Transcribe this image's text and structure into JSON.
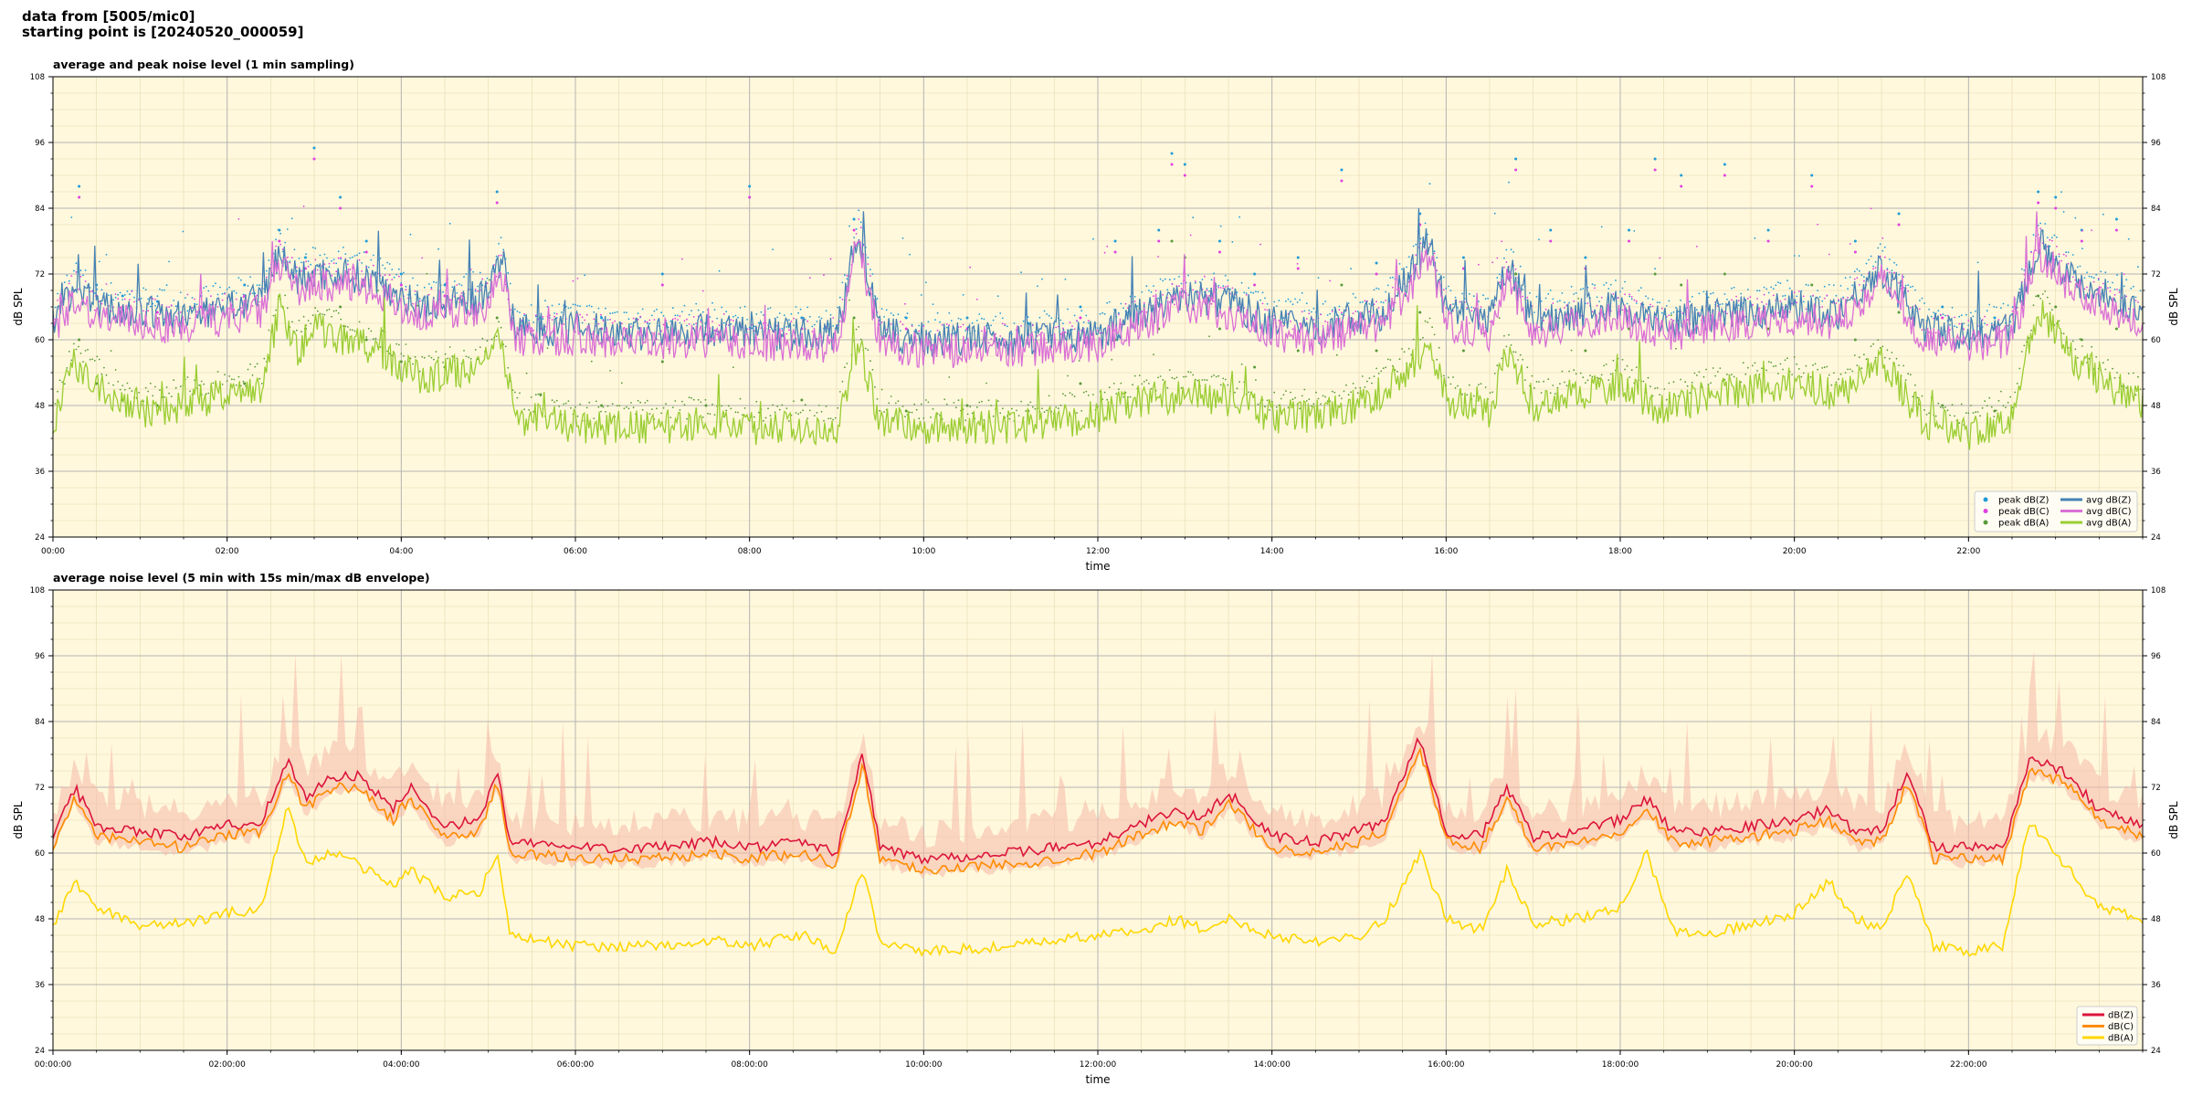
{
  "header": {
    "line1": "data from [5005/mic0]",
    "line2": "starting point is [20240520_000059]"
  },
  "colors": {
    "background": "#FFF8DC",
    "peak_z": "#1f9bd8",
    "peak_c": "#e040e0",
    "peak_a": "#5a9a3a",
    "avg_z": "#4682B4",
    "avg_c": "#DA70D6",
    "avg_a": "#9ACD32",
    "db_z": "#DC143C",
    "db_c": "#FF8C00",
    "db_a": "#FFD700",
    "envelope": "#f5b8a8"
  },
  "chart_data": [
    {
      "type": "line",
      "title": "average and peak noise level (1 min sampling)",
      "xlabel": "time",
      "ylabel": "dB SPL",
      "ylim": [
        24,
        108
      ],
      "yticks": [
        "24",
        "36",
        "48",
        "60",
        "72",
        "84",
        "96",
        "108"
      ],
      "xlim": [
        0,
        24
      ],
      "xtick_labels": [
        "00:00",
        "02:00",
        "04:00",
        "06:00",
        "08:00",
        "10:00",
        "12:00",
        "14:00",
        "16:00",
        "18:00",
        "20:00",
        "22:00"
      ],
      "grid": true,
      "legend_position": "bottom-right",
      "legend_columns": [
        [
          "peak dB(Z)",
          "peak dB(C)",
          "peak dB(A)"
        ],
        [
          "avg dB(Z)",
          "avg dB(C)",
          "avg dB(A)"
        ]
      ],
      "series": [
        {
          "name": "avg dB(Z)",
          "kind": "line",
          "x": [
            0,
            0.25,
            0.5,
            1,
            1.5,
            2,
            2.4,
            2.6,
            2.8,
            3,
            3.4,
            3.8,
            4.2,
            4.6,
            5,
            5.15,
            5.3,
            6,
            7,
            7.6,
            8,
            9,
            9.25,
            9.5,
            10,
            11,
            12,
            12.5,
            13,
            13.5,
            14,
            14.5,
            15,
            15.3,
            15.6,
            15.8,
            16,
            16.5,
            16.7,
            17,
            17.5,
            18,
            18.5,
            19,
            19.5,
            20,
            20.5,
            21,
            21.5,
            22,
            22.5,
            22.8,
            23.2,
            23.6,
            24
          ],
          "y": [
            63,
            70,
            66,
            65,
            64,
            66,
            67,
            76,
            71,
            72,
            72,
            70,
            66,
            67,
            68,
            75,
            62,
            62,
            61,
            62,
            61,
            61,
            80,
            61,
            60,
            60,
            61,
            65,
            68,
            67,
            63,
            62,
            64,
            65,
            72,
            78,
            65,
            63,
            74,
            63,
            65,
            66,
            63,
            64,
            65,
            66,
            65,
            73,
            62,
            61,
            62,
            78,
            71,
            68,
            65
          ]
        },
        {
          "name": "avg dB(C)",
          "kind": "line",
          "x": [
            0,
            0.25,
            0.5,
            1,
            1.5,
            2,
            2.4,
            2.6,
            2.8,
            3,
            3.4,
            3.8,
            4.2,
            4.6,
            5,
            5.15,
            5.3,
            6,
            7,
            7.6,
            8,
            9,
            9.25,
            9.5,
            10,
            11,
            12,
            12.5,
            13,
            13.5,
            14,
            14.5,
            15,
            15.3,
            15.6,
            15.8,
            16,
            16.5,
            16.7,
            17,
            17.5,
            18,
            18.5,
            19,
            19.5,
            20,
            20.5,
            21,
            21.5,
            22,
            22.5,
            22.8,
            23.2,
            23.6,
            24
          ],
          "y": [
            61,
            68,
            64,
            63,
            62,
            64,
            65,
            74,
            69,
            70,
            70,
            68,
            64,
            65,
            66,
            73,
            60,
            60,
            59,
            60,
            59,
            59,
            78,
            59,
            58,
            58,
            59,
            63,
            66,
            65,
            61,
            60,
            62,
            63,
            70,
            76,
            63,
            61,
            72,
            61,
            63,
            64,
            61,
            62,
            63,
            64,
            63,
            71,
            60,
            59,
            60,
            76,
            69,
            66,
            63
          ]
        },
        {
          "name": "avg dB(A)",
          "kind": "line",
          "x": [
            0,
            0.25,
            0.5,
            1,
            1.5,
            2,
            2.4,
            2.6,
            2.8,
            3,
            3.4,
            3.8,
            4.2,
            4.6,
            5,
            5.15,
            5.3,
            6,
            7,
            7.6,
            8,
            9,
            9.25,
            9.5,
            10,
            11,
            12,
            12.5,
            13,
            13.5,
            14,
            14.5,
            15,
            15.3,
            15.6,
            15.8,
            16,
            16.5,
            16.7,
            17,
            17.5,
            18,
            18.5,
            19,
            19.5,
            20,
            20.5,
            21,
            21.5,
            22,
            22.5,
            22.8,
            23.2,
            23.6,
            24
          ],
          "y": [
            45,
            56,
            52,
            47,
            48,
            50,
            51,
            66,
            58,
            62,
            60,
            57,
            53,
            54,
            56,
            60,
            46,
            44,
            44,
            45,
            44,
            44,
            60,
            45,
            44,
            44,
            46,
            49,
            50,
            49,
            46,
            46,
            48,
            51,
            55,
            60,
            49,
            47,
            58,
            48,
            50,
            52,
            47,
            50,
            51,
            52,
            50,
            56,
            45,
            43,
            46,
            66,
            56,
            52,
            48
          ]
        },
        {
          "name": "peak dB(Z)",
          "kind": "scatter",
          "x": [
            0.3,
            0.5,
            0.8,
            1.2,
            1.7,
            2.2,
            2.6,
            2.9,
            3.0,
            3.3,
            3.6,
            4.0,
            4.5,
            5.1,
            5.6,
            6.3,
            7.0,
            7.5,
            8.0,
            8.6,
            9.2,
            9.8,
            10.5,
            11.2,
            11.8,
            12.2,
            12.7,
            12.85,
            13.0,
            13.4,
            13.8,
            14.3,
            14.8,
            15.2,
            15.7,
            16.2,
            16.8,
            17.2,
            17.6,
            18.1,
            18.4,
            18.7,
            19.2,
            19.7,
            20.2,
            20.7,
            21.2,
            21.7,
            22.3,
            22.8,
            23.0,
            23.3,
            23.7
          ],
          "y": [
            88,
            70,
            68,
            67,
            68,
            70,
            80,
            75,
            95,
            86,
            78,
            72,
            70,
            87,
            64,
            64,
            72,
            63,
            88,
            64,
            82,
            64,
            64,
            63,
            66,
            78,
            80,
            94,
            92,
            78,
            72,
            75,
            91,
            74,
            83,
            75,
            93,
            80,
            75,
            80,
            93,
            90,
            92,
            80,
            90,
            78,
            83,
            66,
            64,
            87,
            86,
            80,
            82
          ]
        },
        {
          "name": "peak dB(C)",
          "kind": "scatter",
          "x": [
            0.3,
            0.5,
            0.8,
            1.2,
            1.7,
            2.2,
            2.6,
            2.9,
            3.0,
            3.3,
            3.6,
            4.0,
            4.5,
            5.1,
            5.6,
            6.3,
            7.0,
            7.5,
            8.0,
            8.6,
            9.2,
            9.8,
            10.5,
            11.2,
            11.8,
            12.2,
            12.7,
            12.85,
            13.0,
            13.4,
            13.8,
            14.3,
            14.8,
            15.2,
            15.7,
            16.2,
            16.8,
            17.2,
            17.6,
            18.1,
            18.4,
            18.7,
            19.2,
            19.7,
            20.2,
            20.7,
            21.2,
            21.7,
            22.3,
            22.8,
            23.0,
            23.3,
            23.7
          ],
          "y": [
            86,
            68,
            66,
            65,
            66,
            68,
            78,
            73,
            93,
            84,
            76,
            70,
            68,
            85,
            62,
            62,
            70,
            61,
            86,
            62,
            80,
            62,
            62,
            61,
            64,
            76,
            78,
            92,
            90,
            76,
            70,
            73,
            89,
            72,
            81,
            73,
            91,
            78,
            73,
            78,
            91,
            88,
            90,
            78,
            88,
            76,
            81,
            64,
            62,
            85,
            84,
            78,
            80
          ]
        },
        {
          "name": "peak dB(A)",
          "kind": "scatter",
          "x": [
            0.3,
            0.5,
            0.8,
            1.2,
            1.7,
            2.2,
            2.6,
            2.9,
            3.0,
            3.3,
            3.6,
            4.0,
            4.5,
            5.1,
            5.6,
            6.3,
            7.0,
            7.5,
            8.0,
            8.6,
            9.2,
            9.8,
            10.5,
            11.2,
            11.8,
            12.2,
            12.7,
            12.85,
            13.0,
            13.4,
            13.8,
            14.3,
            14.8,
            15.2,
            15.7,
            16.2,
            16.8,
            17.2,
            17.6,
            18.1,
            18.4,
            18.7,
            19.2,
            19.7,
            20.2,
            20.7,
            21.2,
            21.7,
            22.3,
            22.8,
            23.0,
            23.3,
            23.7
          ],
          "y": [
            60,
            52,
            49,
            48,
            50,
            52,
            68,
            62,
            72,
            66,
            60,
            56,
            55,
            64,
            50,
            48,
            56,
            48,
            60,
            49,
            64,
            47,
            48,
            47,
            52,
            60,
            62,
            78,
            75,
            62,
            55,
            58,
            70,
            58,
            65,
            58,
            72,
            62,
            58,
            62,
            72,
            70,
            72,
            62,
            70,
            60,
            65,
            48,
            47,
            68,
            66,
            60,
            62
          ]
        }
      ]
    },
    {
      "type": "line",
      "title": "average noise level (5 min with 15s min/max dB envelope)",
      "xlabel": "time",
      "ylabel": "dB SPL",
      "ylim": [
        24,
        108
      ],
      "yticks": [
        "24",
        "36",
        "48",
        "60",
        "72",
        "84",
        "96",
        "108"
      ],
      "xlim": [
        0,
        24
      ],
      "xtick_labels": [
        "00:00:00",
        "02:00:00",
        "04:00:00",
        "06:00:00",
        "08:00:00",
        "10:00:00",
        "12:00:00",
        "14:00:00",
        "16:00:00",
        "18:00:00",
        "20:00:00",
        "22:00:00"
      ],
      "grid": true,
      "legend_position": "bottom-right",
      "series": [
        {
          "name": "dB(Z)",
          "x": [
            0,
            0.25,
            0.5,
            1,
            1.5,
            2,
            2.4,
            2.7,
            2.9,
            3.2,
            3.5,
            3.9,
            4.1,
            4.5,
            4.9,
            5.1,
            5.25,
            6,
            7,
            7.6,
            8,
            8.6,
            9,
            9.3,
            9.5,
            10,
            11,
            12,
            12.6,
            12.9,
            13.2,
            13.5,
            14,
            14.5,
            15,
            15.3,
            15.7,
            16,
            16.4,
            16.7,
            17,
            17.5,
            18,
            18.3,
            18.6,
            19,
            19.5,
            20,
            20.4,
            20.7,
            21,
            21.3,
            21.6,
            22,
            22.4,
            22.7,
            23.1,
            23.5,
            24
          ],
          "y": [
            63,
            72,
            65,
            64,
            63,
            65,
            66,
            77,
            70,
            74,
            74,
            68,
            72,
            65,
            66,
            75,
            62,
            61,
            61,
            62,
            61,
            62,
            60,
            78,
            61,
            59,
            60,
            62,
            66,
            68,
            66,
            71,
            63,
            62,
            64,
            66,
            81,
            64,
            63,
            72,
            63,
            64,
            66,
            70,
            64,
            64,
            65,
            66,
            68,
            64,
            64,
            75,
            61,
            61,
            61,
            77,
            75,
            68,
            65
          ]
        },
        {
          "name": "dB(C)",
          "x": [
            0,
            0.25,
            0.5,
            1,
            1.5,
            2,
            2.4,
            2.7,
            2.9,
            3.2,
            3.5,
            3.9,
            4.1,
            4.5,
            4.9,
            5.1,
            5.25,
            6,
            7,
            7.6,
            8,
            8.6,
            9,
            9.3,
            9.5,
            10,
            11,
            12,
            12.6,
            12.9,
            13.2,
            13.5,
            14,
            14.5,
            15,
            15.3,
            15.7,
            16,
            16.4,
            16.7,
            17,
            17.5,
            18,
            18.3,
            18.6,
            19,
            19.5,
            20,
            20.4,
            20.7,
            21,
            21.3,
            21.6,
            22,
            22.4,
            22.7,
            23.1,
            23.5,
            24
          ],
          "y": [
            61,
            70,
            63,
            62,
            61,
            63,
            64,
            75,
            68,
            72,
            72,
            66,
            70,
            63,
            64,
            73,
            60,
            59,
            59,
            60,
            59,
            60,
            58,
            76,
            59,
            57,
            58,
            60,
            64,
            66,
            64,
            69,
            61,
            60,
            62,
            64,
            79,
            62,
            61,
            70,
            61,
            62,
            64,
            68,
            62,
            62,
            63,
            64,
            66,
            62,
            62,
            73,
            59,
            59,
            59,
            75,
            73,
            66,
            63
          ]
        },
        {
          "name": "dB(A)",
          "x": [
            0,
            0.25,
            0.5,
            1,
            1.5,
            2,
            2.4,
            2.7,
            2.9,
            3.2,
            3.5,
            3.9,
            4.1,
            4.5,
            4.9,
            5.1,
            5.25,
            6,
            7,
            7.6,
            8,
            8.6,
            9,
            9.3,
            9.5,
            10,
            11,
            12,
            12.6,
            12.9,
            13.2,
            13.5,
            14,
            14.5,
            15,
            15.3,
            15.7,
            16,
            16.4,
            16.7,
            17,
            17.5,
            18,
            18.3,
            18.6,
            19,
            19.5,
            20,
            20.4,
            20.7,
            21,
            21.3,
            21.6,
            22,
            22.4,
            22.7,
            23.1,
            23.5,
            24
          ],
          "y": [
            46,
            55,
            50,
            47,
            47,
            49,
            50,
            69,
            58,
            60,
            58,
            54,
            57,
            52,
            53,
            60,
            45,
            43,
            43,
            44,
            43,
            45,
            42,
            57,
            44,
            42,
            43,
            45,
            46,
            48,
            46,
            48,
            45,
            44,
            45,
            48,
            60,
            48,
            46,
            57,
            47,
            48,
            50,
            60,
            46,
            45,
            47,
            49,
            55,
            48,
            46,
            57,
            43,
            42,
            43,
            66,
            58,
            50,
            48
          ]
        }
      ]
    }
  ]
}
